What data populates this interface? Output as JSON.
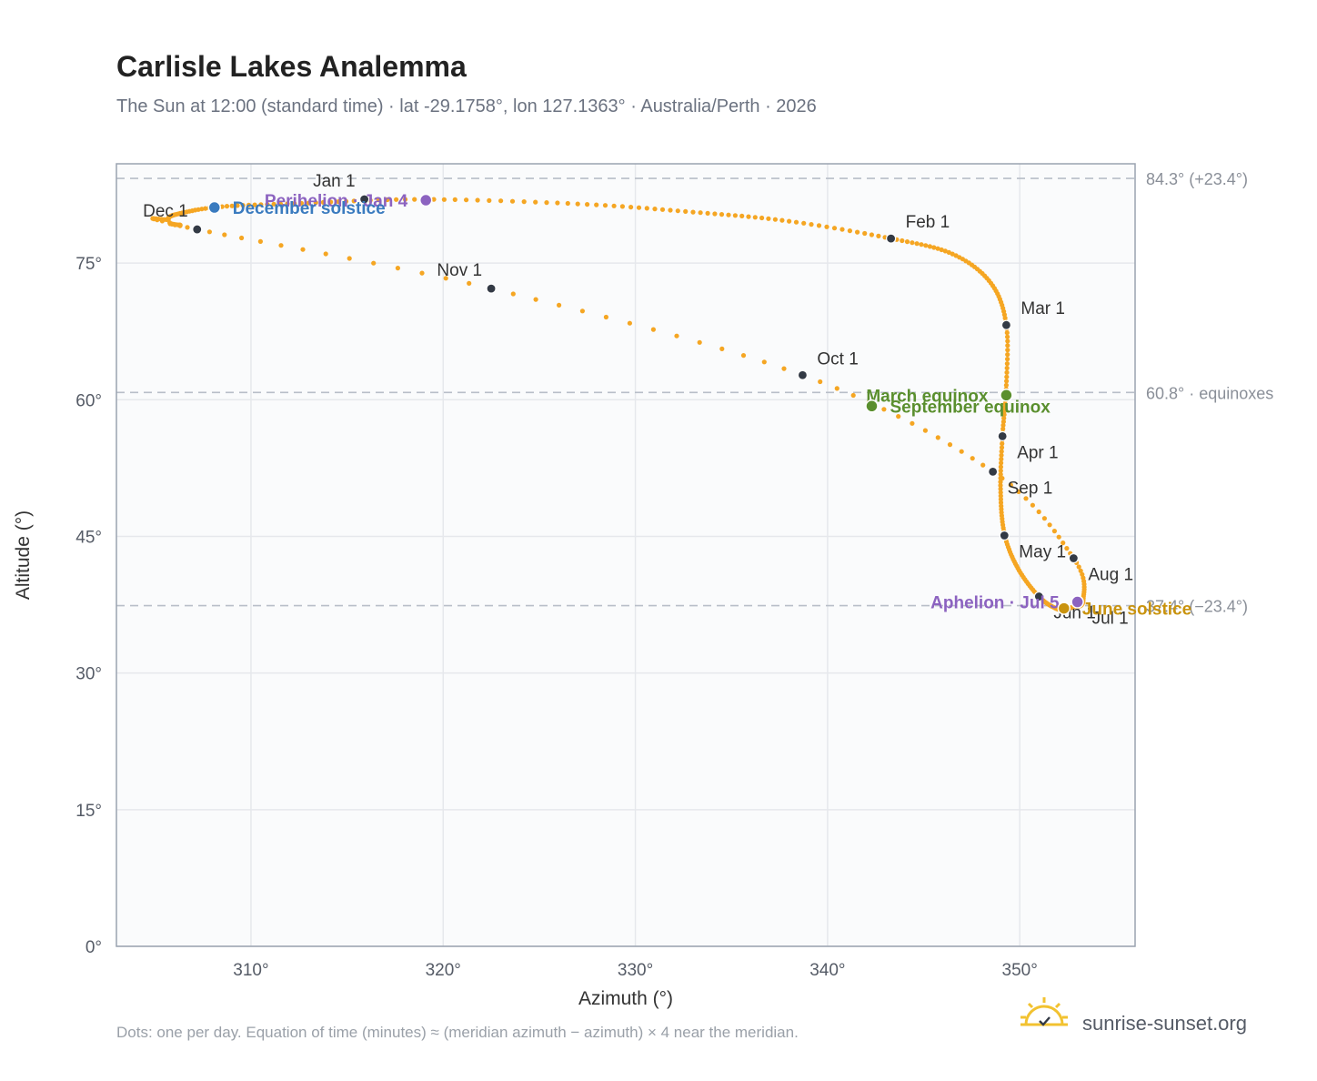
{
  "header": {
    "title": "Carlisle Lakes Analemma",
    "subtitle": "The Sun at 12:00 (standard time) · lat -29.1758°, lon 127.1363° · Australia/Perth · 2026"
  },
  "footer": {
    "note": "Dots: one per day. Equation of time (minutes) ≈ (meridian azimuth − azimuth) × 4 near the meridian.",
    "brand": "sunrise-sunset.org",
    "brand_icon": "sun-logo-icon"
  },
  "colors": {
    "curve": "#f5a623",
    "month_marker": "#333a45",
    "equinox": "#5a8f2e",
    "december_solstice": "#3a7bbf",
    "june_solstice": "#c9930e",
    "perihelion_aphelion": "#8c63c0",
    "grid": "#e6e8ec",
    "plot_bg": "#fafbfc",
    "frame": "#9aa3b0",
    "reference_line": "#b8bec8"
  },
  "chart_data": {
    "type": "scatter",
    "xlabel": "Azimuth (°)",
    "ylabel": "Altitude (°)",
    "xlim": [
      303,
      356
    ],
    "ylim": [
      0,
      85.9
    ],
    "xticks": [
      310,
      320,
      330,
      340,
      350
    ],
    "xtick_labels": [
      "310°",
      "320°",
      "330°",
      "340°",
      "350°"
    ],
    "yticks": [
      0,
      15,
      30,
      45,
      60,
      75
    ],
    "ytick_labels": [
      "0°",
      "15°",
      "30°",
      "45°",
      "60°",
      "75°"
    ],
    "grid": true,
    "reference_lines": [
      {
        "altitude": 84.3,
        "label": "84.3° (+23.4°)"
      },
      {
        "altitude": 60.8,
        "label": "60.8° · equinoxes"
      },
      {
        "altitude": 37.4,
        "label": "37.4° (−23.4°)"
      }
    ],
    "analemma_path": [
      [
        307.2,
        78.7
      ],
      [
        322.5,
        72.2
      ],
      [
        338.7,
        62.7
      ],
      [
        348.6,
        52.1
      ],
      [
        352.8,
        42.6
      ],
      [
        353.3,
        38.0
      ],
      [
        352.7,
        37.2
      ],
      [
        352.0,
        37.0
      ],
      [
        351.0,
        38.4
      ],
      [
        349.9,
        41.5
      ],
      [
        349.2,
        45.3
      ],
      [
        349.0,
        50.2
      ],
      [
        349.1,
        56.0
      ],
      [
        349.3,
        61.6
      ],
      [
        349.3,
        68.2
      ],
      [
        348.5,
        72.8
      ],
      [
        346.5,
        76.0
      ],
      [
        343.3,
        77.7
      ],
      [
        338.0,
        79.6
      ],
      [
        333.0,
        80.6
      ],
      [
        327.0,
        81.5
      ],
      [
        319.0,
        82.0
      ],
      [
        313.0,
        81.6
      ],
      [
        308.5,
        81.2
      ],
      [
        306.2,
        80.4
      ],
      [
        305.7,
        79.8
      ],
      [
        306.3,
        79.2
      ],
      [
        307.2,
        78.7
      ]
    ],
    "month_markers": [
      {
        "label": "Jan 1",
        "azimuth": 315.9,
        "altitude": 82.0,
        "label_pos": "above-left"
      },
      {
        "label": "Feb 1",
        "azimuth": 343.3,
        "altitude": 77.7,
        "label_pos": "above-right"
      },
      {
        "label": "Mar 1",
        "azimuth": 349.3,
        "altitude": 68.2,
        "label_pos": "above-right"
      },
      {
        "label": "Apr 1",
        "azimuth": 349.1,
        "altitude": 56.0,
        "label_pos": "below-right"
      },
      {
        "label": "May 1",
        "azimuth": 349.2,
        "altitude": 45.1,
        "label_pos": "below-right"
      },
      {
        "label": "Jun 1",
        "azimuth": 351.0,
        "altitude": 38.4,
        "label_pos": "below-right"
      },
      {
        "label": "Jul 1",
        "azimuth": 353.0,
        "altitude": 37.8,
        "label_pos": "below-right"
      },
      {
        "label": "Aug 1",
        "azimuth": 352.8,
        "altitude": 42.6,
        "label_pos": "below-right"
      },
      {
        "label": "Sep 1",
        "azimuth": 348.6,
        "altitude": 52.1,
        "label_pos": "below-right"
      },
      {
        "label": "Oct 1",
        "azimuth": 338.7,
        "altitude": 62.7,
        "label_pos": "above-right"
      },
      {
        "label": "Nov 1",
        "azimuth": 322.5,
        "altitude": 72.2,
        "label_pos": "above-left"
      },
      {
        "label": "Dec 1",
        "azimuth": 307.2,
        "altitude": 78.7,
        "label_pos": "above-left"
      }
    ],
    "events": [
      {
        "label": "Perihelion · Jan 4",
        "azimuth": 319.1,
        "altitude": 81.9,
        "color_key": "perihelion_aphelion",
        "label_pos": "left"
      },
      {
        "label": "December solstice",
        "azimuth": 308.1,
        "altitude": 81.1,
        "color_key": "december_solstice",
        "label_pos": "right"
      },
      {
        "label": "March equinox",
        "azimuth": 349.3,
        "altitude": 60.5,
        "color_key": "equinox",
        "label_pos": "left"
      },
      {
        "label": "September equinox",
        "azimuth": 342.3,
        "altitude": 59.3,
        "color_key": "equinox",
        "label_pos": "right"
      },
      {
        "label": "Aphelion · Jul 5",
        "azimuth": 353.0,
        "altitude": 37.8,
        "color_key": "perihelion_aphelion",
        "label_pos": "left"
      },
      {
        "label": "June solstice",
        "azimuth": 352.3,
        "altitude": 37.1,
        "color_key": "june_solstice",
        "label_pos": "right"
      }
    ]
  }
}
